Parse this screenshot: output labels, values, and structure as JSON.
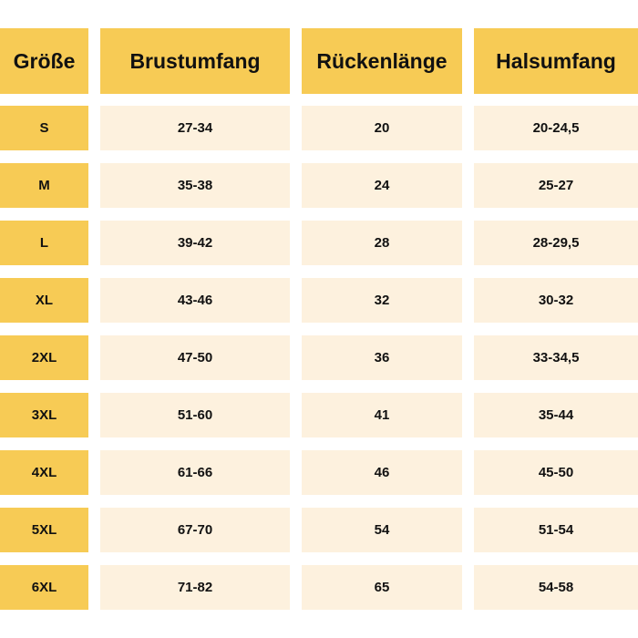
{
  "table": {
    "headers": [
      "Größe",
      "Brustumfang",
      "Rückenlänge",
      "Halsumfang"
    ],
    "rows": [
      [
        "S",
        "27-34",
        "20",
        "20-24,5"
      ],
      [
        "M",
        "35-38",
        "24",
        "25-27"
      ],
      [
        "L",
        "39-42",
        "28",
        "28-29,5"
      ],
      [
        "XL",
        "43-46",
        "32",
        "30-32"
      ],
      [
        "2XL",
        "47-50",
        "36",
        "33-34,5"
      ],
      [
        "3XL",
        "51-60",
        "41",
        "35-44"
      ],
      [
        "4XL",
        "61-66",
        "46",
        "45-50"
      ],
      [
        "5XL",
        "67-70",
        "54",
        "51-54"
      ],
      [
        "6XL",
        "71-82",
        "65",
        "54-58"
      ]
    ]
  },
  "colors": {
    "header_bg": "#f7cb55",
    "cell_bg": "#fdf1de",
    "text": "#111111"
  }
}
